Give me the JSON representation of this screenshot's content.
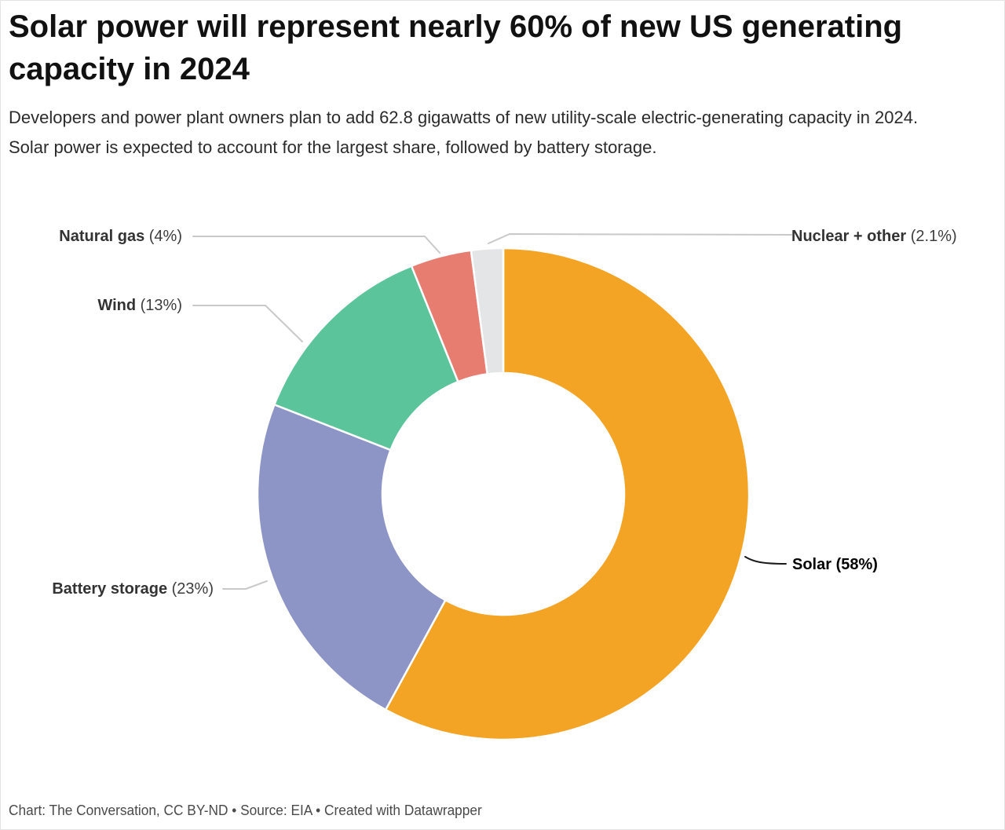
{
  "header": {
    "title": "Solar power will represent nearly 60% of new US generating capacity in 2024",
    "subtitle": "Developers and power plant owners plan to add 62.8 gigawatts of new utility-scale electric-generating capacity in 2024. Solar power is expected to account for the largest share, followed by battery storage."
  },
  "chart_data": {
    "type": "pie",
    "subtype": "donut",
    "title": "Solar power will represent nearly 60% of new US generating capacity in 2024",
    "categories": [
      "Solar",
      "Battery storage",
      "Wind",
      "Natural gas",
      "Nuclear + other"
    ],
    "values": [
      58,
      23,
      13,
      4,
      2.1
    ],
    "unit": "percent of new capacity",
    "colors": [
      "#F4A425",
      "#8D94C6",
      "#5BC49B",
      "#E77D71",
      "#E4E5E7"
    ],
    "start_angle_deg": 0,
    "direction": "clockwise",
    "donut_hole_ratio": 0.49,
    "slice_border_color": "#ffffff",
    "legend_position": "callout-labels"
  },
  "callouts": {
    "natural_gas": {
      "name": "Natural gas",
      "pct": "(4%)"
    },
    "wind": {
      "name": "Wind",
      "pct": "(13%)"
    },
    "battery_storage": {
      "name": "Battery storage",
      "pct": "(23%)"
    },
    "nuclear_other": {
      "name": "Nuclear + other",
      "pct": "(2.1%)"
    },
    "solar": {
      "name": "Solar",
      "pct": "(58%)"
    }
  },
  "connector_colors": {
    "default": "#c9c9c9",
    "solar": "#1a1a1a"
  },
  "footer": {
    "text": "Chart: The Conversation, CC BY-ND • Source: EIA • Created with Datawrapper"
  }
}
